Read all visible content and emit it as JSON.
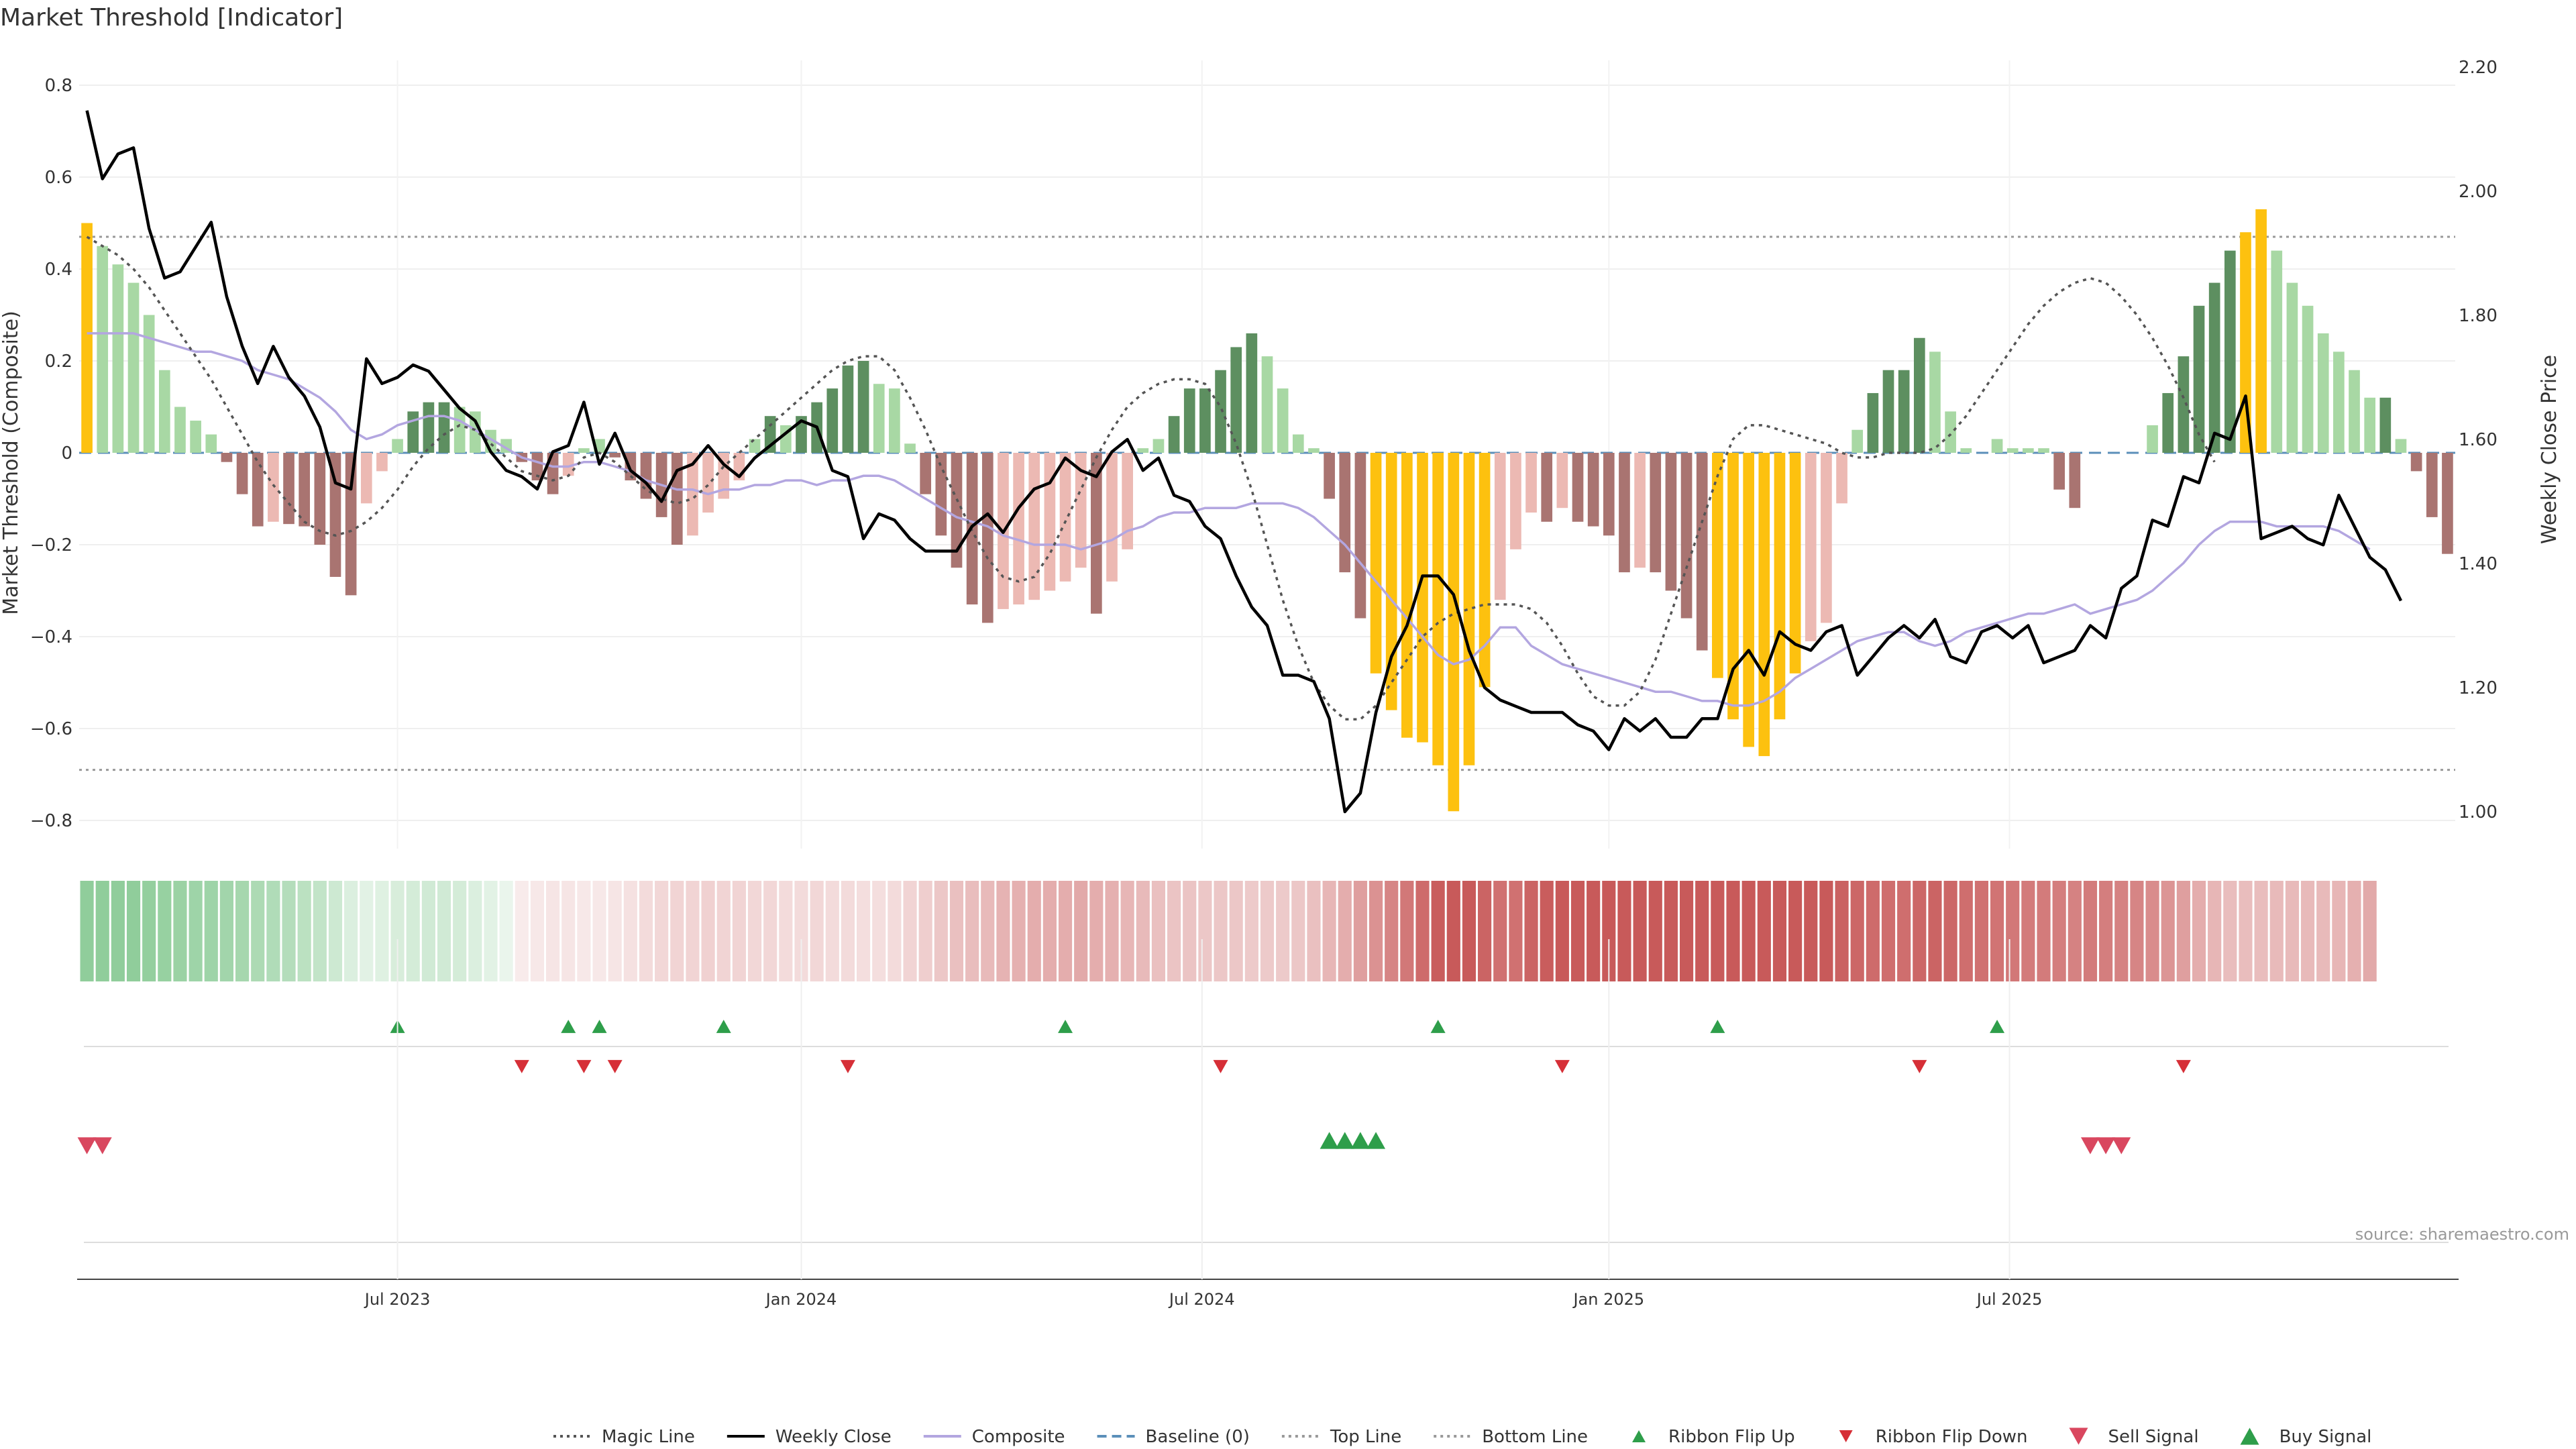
{
  "chart_data": {
    "type": "bar",
    "title": "Market Threshold [Indicator]",
    "ylabel": "Market Threshold (Composite)",
    "y2label": "Weekly Close Price",
    "ylim": [
      -0.85,
      0.85
    ],
    "y2lim": [
      0.96,
      2.22
    ],
    "yticks": [
      "0.8",
      "0.6",
      "0.4",
      "0.2",
      "0",
      "−0.2",
      "−0.4",
      "−0.6",
      "−0.8"
    ],
    "y2ticks": [
      "2.20",
      "2.00",
      "1.80",
      "1.60",
      "1.40",
      "1.20",
      "1.00"
    ],
    "top_line": 0.47,
    "bottom_line": -0.69,
    "xticks": [
      {
        "week": 20.5,
        "label": "Jul 2023"
      },
      {
        "week": 46.5,
        "label": "Jan 2024"
      },
      {
        "week": 72.3,
        "label": "Jul 2024"
      },
      {
        "week": 98.5,
        "label": "Jan 2025"
      },
      {
        "week": 124.3,
        "label": "Jul 2025"
      }
    ],
    "composite_bars": [
      0.5,
      0.45,
      0.41,
      0.37,
      0.3,
      0.18,
      0.1,
      0.07,
      0.04,
      -0.02,
      -0.09,
      -0.16,
      -0.15,
      -0.155,
      -0.16,
      -0.2,
      -0.27,
      -0.31,
      -0.11,
      -0.04,
      0.03,
      0.09,
      0.11,
      0.11,
      0.1,
      0.09,
      0.05,
      0.03,
      -0.02,
      -0.06,
      -0.09,
      -0.05,
      0.01,
      0.03,
      -0.01,
      -0.06,
      -0.1,
      -0.14,
      -0.2,
      -0.18,
      -0.13,
      -0.1,
      -0.06,
      0.03,
      0.08,
      0.06,
      0.08,
      0.11,
      0.14,
      0.19,
      0.2,
      0.15,
      0.14,
      0.02,
      -0.09,
      -0.18,
      -0.25,
      -0.33,
      -0.37,
      -0.34,
      -0.33,
      -0.32,
      -0.3,
      -0.28,
      -0.25,
      -0.35,
      -0.28,
      -0.21,
      0.01,
      0.03,
      0.08,
      0.14,
      0.14,
      0.18,
      0.23,
      0.26,
      0.21,
      0.14,
      0.04,
      0.01,
      -0.1,
      -0.26,
      -0.36,
      -0.48,
      -0.56,
      -0.62,
      -0.63,
      -0.68,
      -0.78,
      -0.68,
      -0.51,
      -0.32,
      -0.21,
      -0.13,
      -0.15,
      -0.12,
      -0.15,
      -0.16,
      -0.18,
      -0.26,
      -0.25,
      -0.26,
      -0.3,
      -0.36,
      -0.43,
      -0.49,
      -0.58,
      -0.64,
      -0.66,
      -0.58,
      -0.48,
      -0.41,
      -0.37,
      -0.11,
      0.05,
      0.13,
      0.18,
      0.18,
      0.25,
      0.22,
      0.09,
      0.01,
      0.0,
      0.03,
      0.01,
      0.01,
      0.01,
      -0.08,
      -0.12,
      0.0,
      0.0,
      0.0,
      0.0,
      0.06,
      0.13,
      0.21,
      0.32,
      0.37,
      0.44,
      0.48,
      0.53,
      0.44,
      0.37,
      0.32,
      0.26,
      0.22,
      0.18,
      0.12,
      0.12,
      0.03,
      -0.04,
      -0.14,
      -0.22
    ],
    "weekly_close": [
      2.13,
      2.02,
      2.06,
      2.07,
      1.94,
      1.86,
      1.87,
      1.91,
      1.95,
      1.83,
      1.75,
      1.69,
      1.75,
      1.7,
      1.67,
      1.62,
      1.53,
      1.52,
      1.73,
      1.69,
      1.7,
      1.72,
      1.71,
      1.68,
      1.65,
      1.63,
      1.58,
      1.55,
      1.54,
      1.52,
      1.58,
      1.59,
      1.66,
      1.56,
      1.61,
      1.55,
      1.53,
      1.5,
      1.55,
      1.56,
      1.59,
      1.56,
      1.54,
      1.57,
      1.59,
      1.61,
      1.63,
      1.62,
      1.55,
      1.54,
      1.44,
      1.48,
      1.47,
      1.44,
      1.42,
      1.42,
      1.42,
      1.46,
      1.48,
      1.45,
      1.49,
      1.52,
      1.53,
      1.57,
      1.55,
      1.54,
      1.58,
      1.6,
      1.55,
      1.57,
      1.51,
      1.5,
      1.46,
      1.44,
      1.38,
      1.33,
      1.3,
      1.22,
      1.22,
      1.21,
      1.15,
      1.0,
      1.03,
      1.16,
      1.25,
      1.3,
      1.38,
      1.38,
      1.35,
      1.26,
      1.2,
      1.18,
      1.17,
      1.16,
      1.16,
      1.16,
      1.14,
      1.13,
      1.1,
      1.15,
      1.13,
      1.15,
      1.12,
      1.12,
      1.15,
      1.15,
      1.23,
      1.26,
      1.22,
      1.29,
      1.27,
      1.26,
      1.29,
      1.3,
      1.22,
      1.25,
      1.28,
      1.3,
      1.28,
      1.31,
      1.25,
      1.24,
      1.29,
      1.3,
      1.28,
      1.3,
      1.24,
      1.25,
      1.26,
      1.3,
      1.28,
      1.36,
      1.38,
      1.47,
      1.46,
      1.54,
      1.53,
      1.61,
      1.6,
      1.67,
      1.44,
      1.45,
      1.46,
      1.44,
      1.43,
      1.51,
      1.46,
      1.41,
      1.39,
      1.34
    ],
    "composite_line": [
      0.26,
      0.26,
      0.26,
      0.26,
      0.25,
      0.24,
      0.23,
      0.22,
      0.22,
      0.21,
      0.2,
      0.18,
      0.17,
      0.16,
      0.14,
      0.12,
      0.09,
      0.05,
      0.03,
      0.04,
      0.06,
      0.07,
      0.08,
      0.08,
      0.07,
      0.05,
      0.03,
      0.01,
      -0.01,
      -0.02,
      -0.03,
      -0.03,
      -0.02,
      -0.02,
      -0.03,
      -0.04,
      -0.06,
      -0.07,
      -0.08,
      -0.08,
      -0.09,
      -0.08,
      -0.08,
      -0.07,
      -0.07,
      -0.06,
      -0.06,
      -0.07,
      -0.06,
      -0.06,
      -0.05,
      -0.05,
      -0.06,
      -0.08,
      -0.1,
      -0.12,
      -0.14,
      -0.15,
      -0.16,
      -0.18,
      -0.19,
      -0.2,
      -0.2,
      -0.2,
      -0.21,
      -0.2,
      -0.19,
      -0.17,
      -0.16,
      -0.14,
      -0.13,
      -0.13,
      -0.12,
      -0.12,
      -0.12,
      -0.11,
      -0.11,
      -0.11,
      -0.12,
      -0.14,
      -0.17,
      -0.2,
      -0.24,
      -0.28,
      -0.32,
      -0.36,
      -0.4,
      -0.44,
      -0.46,
      -0.45,
      -0.42,
      -0.38,
      -0.38,
      -0.42,
      -0.44,
      -0.46,
      -0.47,
      -0.48,
      -0.49,
      -0.5,
      -0.51,
      -0.52,
      -0.52,
      -0.53,
      -0.54,
      -0.54,
      -0.55,
      -0.55,
      -0.54,
      -0.52,
      -0.49,
      -0.47,
      -0.45,
      -0.43,
      -0.41,
      -0.4,
      -0.39,
      -0.39,
      -0.41,
      -0.42,
      -0.41,
      -0.39,
      -0.38,
      -0.37,
      -0.36,
      -0.35,
      -0.35,
      -0.34,
      -0.33,
      -0.35,
      -0.34,
      -0.33,
      -0.32,
      -0.3,
      -0.27,
      -0.24,
      -0.2,
      -0.17,
      -0.15,
      -0.15,
      -0.15,
      -0.16,
      -0.16,
      -0.16,
      -0.16,
      -0.17,
      -0.19,
      -0.21
    ],
    "magic_line": [
      0.47,
      0.45,
      0.43,
      0.4,
      0.36,
      0.31,
      0.26,
      0.21,
      0.16,
      0.1,
      0.04,
      -0.02,
      -0.07,
      -0.11,
      -0.15,
      -0.17,
      -0.18,
      -0.17,
      -0.15,
      -0.12,
      -0.08,
      -0.03,
      0.01,
      0.04,
      0.06,
      0.05,
      0.02,
      -0.01,
      -0.04,
      -0.05,
      -0.06,
      -0.05,
      -0.01,
      0.0,
      -0.02,
      -0.05,
      -0.08,
      -0.1,
      -0.11,
      -0.1,
      -0.07,
      -0.03,
      0.0,
      0.03,
      0.06,
      0.09,
      0.12,
      0.15,
      0.18,
      0.2,
      0.21,
      0.21,
      0.18,
      0.12,
      0.05,
      -0.03,
      -0.1,
      -0.17,
      -0.23,
      -0.27,
      -0.28,
      -0.27,
      -0.22,
      -0.15,
      -0.08,
      -0.01,
      0.05,
      0.1,
      0.13,
      0.15,
      0.16,
      0.16,
      0.15,
      0.1,
      0.02,
      -0.08,
      -0.2,
      -0.32,
      -0.42,
      -0.5,
      -0.55,
      -0.58,
      -0.58,
      -0.55,
      -0.5,
      -0.45,
      -0.4,
      -0.37,
      -0.35,
      -0.34,
      -0.33,
      -0.33,
      -0.33,
      -0.34,
      -0.37,
      -0.42,
      -0.48,
      -0.53,
      -0.55,
      -0.55,
      -0.52,
      -0.45,
      -0.35,
      -0.25,
      -0.15,
      -0.05,
      0.03,
      0.06,
      0.06,
      0.05,
      0.04,
      0.03,
      0.02,
      0.0,
      -0.01,
      -0.01,
      0.0,
      0.0,
      0.0,
      0.01,
      0.04,
      0.08,
      0.13,
      0.18,
      0.23,
      0.28,
      0.32,
      0.35,
      0.37,
      0.38,
      0.37,
      0.34,
      0.3,
      0.25,
      0.19,
      0.12,
      0.04,
      -0.02
    ],
    "ribbon_flip_up": [
      20.5,
      31.5,
      33.5,
      41.5,
      63.5,
      87.5,
      105.5,
      123.5
    ],
    "ribbon_flip_down": [
      28.5,
      32.5,
      34.5,
      49.5,
      73.5,
      95.5,
      118.5,
      135.5
    ],
    "sell_signal": [
      0,
      1,
      129,
      130,
      131
    ],
    "buy_signal": [
      80,
      81,
      82,
      83
    ],
    "source": "source: sharemaestro.com",
    "legend": [
      {
        "label": "Magic Line",
        "kind": "dotted",
        "color": "#555555"
      },
      {
        "label": "Weekly Close",
        "kind": "line",
        "color": "#000000"
      },
      {
        "label": "Composite",
        "kind": "line",
        "color": "#b3a6e0"
      },
      {
        "label": "Baseline (0)",
        "kind": "dashed",
        "color": "#5b8fb9"
      },
      {
        "label": "Top Line",
        "kind": "dotted",
        "color": "#999999"
      },
      {
        "label": "Bottom Line",
        "kind": "dotted",
        "color": "#999999"
      },
      {
        "label": "Ribbon Flip Up",
        "kind": "tri-up",
        "color": "#2e9e4a"
      },
      {
        "label": "Ribbon Flip Down",
        "kind": "tri-down",
        "color": "#d62f37"
      },
      {
        "label": "Sell Signal",
        "kind": "tri-down-big",
        "color": "#d9475f"
      },
      {
        "label": "Buy Signal",
        "kind": "tri-up-big",
        "color": "#2e9e4a"
      }
    ],
    "colors": {
      "extreme": "#fdc10f",
      "pos_strong": "#5d8f60",
      "pos_weak": "#a8d8a4",
      "neg_strong": "#a97471",
      "neg_weak": "#ecb9b3",
      "ribbon_pos": "#4caf5d",
      "ribbon_neg": "#c85a5a"
    }
  }
}
